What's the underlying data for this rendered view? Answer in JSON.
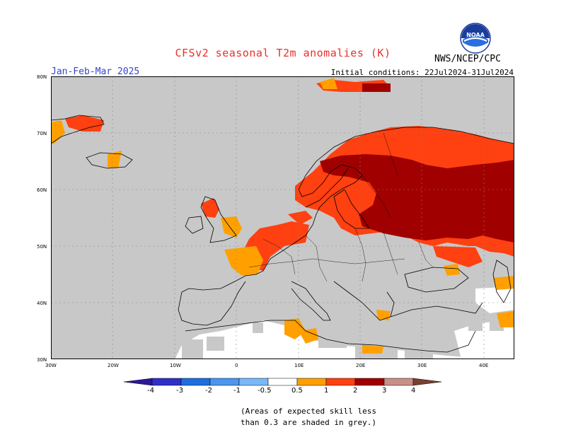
{
  "header": {
    "title": "CFSv2 seasonal T2m anomalies (K)",
    "season": "Jan-Feb-Mar 2025",
    "initial_conditions": "Initial conditions: 22Jul2024-31Jul2024",
    "agency": "NWS/NCEP/CPC",
    "logo_text": "NOAA"
  },
  "axes": {
    "lat_labels": [
      "80N",
      "70N",
      "60N",
      "50N",
      "40N",
      "30N"
    ],
    "lon_labels": [
      "30W",
      "20W",
      "10W",
      "0",
      "10E",
      "20E",
      "30E",
      "40E"
    ]
  },
  "colorbar": {
    "labels": [
      "-4",
      "-3",
      "-2",
      "-1",
      "-0.5",
      "0.5",
      "1",
      "2",
      "3",
      "4"
    ],
    "colors": [
      "#2a1a9a",
      "#3030c8",
      "#1e6ee0",
      "#4a96f0",
      "#78b8f8",
      "#ffffff",
      "#ffa000",
      "#ff4010",
      "#a00000",
      "#c89088",
      "#7a4030"
    ]
  },
  "colors": {
    "skill_grey": "#c8c8c8",
    "land_no_anomaly": "#ffffff",
    "anom_0_5_1": "#ffa000",
    "anom_1_2": "#ff4010",
    "anom_2_3": "#a00000"
  },
  "footnote": {
    "line1": "(Areas of expected skill less",
    "line2": "than 0.3 are shaded in grey.)"
  }
}
